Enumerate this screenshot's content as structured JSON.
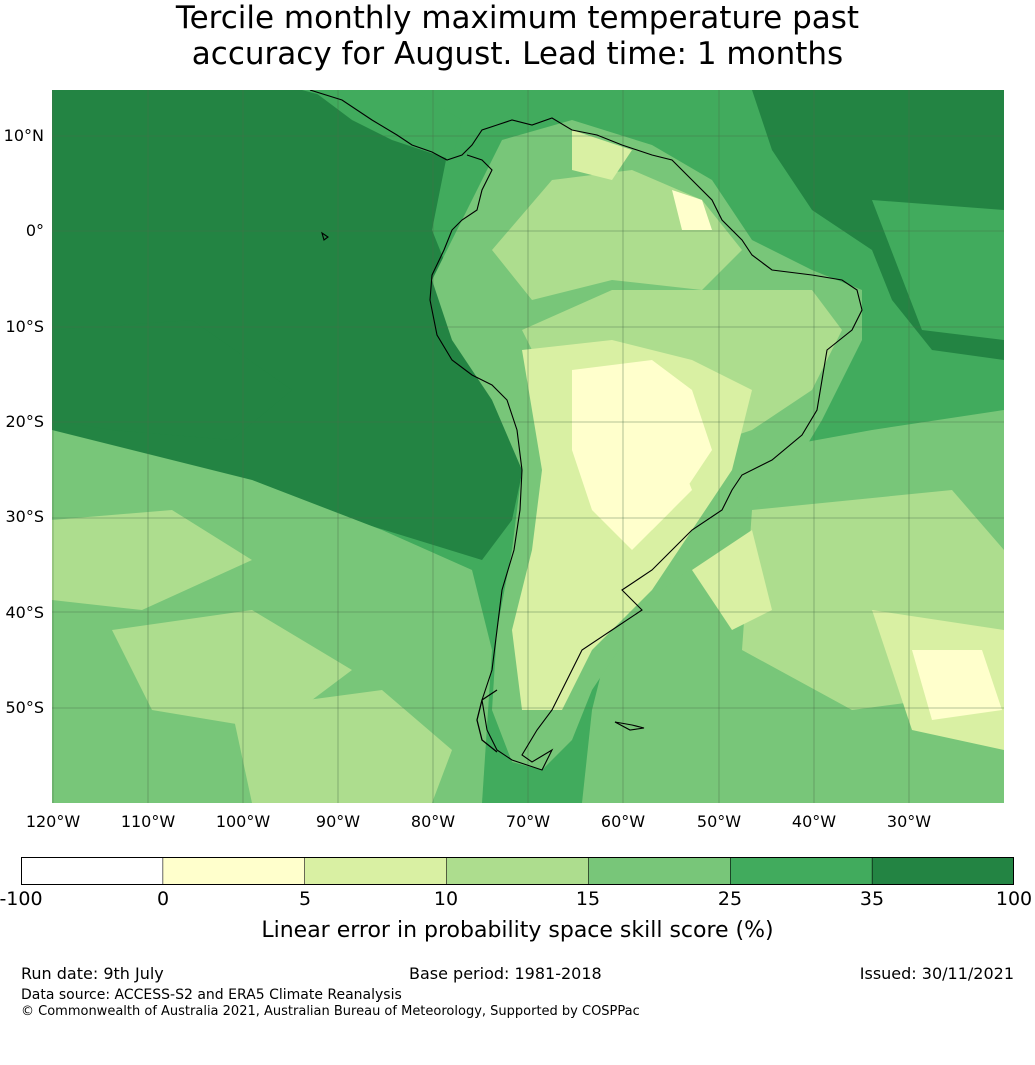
{
  "title": {
    "line1": "Tercile monthly maximum temperature past",
    "line2": "accuracy for August. Lead time: 1 months"
  },
  "lat_labels": [
    "10°N",
    "0°",
    "10°S",
    "20°S",
    "30°S",
    "40°S",
    "50°S"
  ],
  "lon_labels": [
    "120°W",
    "110°W",
    "100°W",
    "90°W",
    "80°W",
    "70°W",
    "60°W",
    "50°W",
    "40°W",
    "30°W"
  ],
  "colorbar": {
    "ticks": [
      "-100",
      "0",
      "5",
      "10",
      "15",
      "25",
      "35",
      "100"
    ],
    "colors": [
      "#ffffff",
      "#ffffcc",
      "#d9f0a3",
      "#addd8e",
      "#78c679",
      "#41ab5d",
      "#238443"
    ],
    "label": "Linear error in probability space skill score (%)"
  },
  "footer": {
    "run_date": "Run date: 9th July",
    "base_period": "Base period: 1981-2018",
    "issued": "Issued: 30/11/2021",
    "data_source": "Data source: ACCESS-S2 and ERA5 Climate Reanalysis",
    "copyright": "© Commonwealth of Australia 2021, Australian Bureau of Meteorology, Supported by COSPPac"
  }
}
